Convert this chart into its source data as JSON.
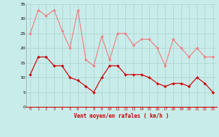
{
  "hours": [
    0,
    1,
    2,
    3,
    4,
    5,
    6,
    7,
    8,
    9,
    10,
    11,
    12,
    13,
    14,
    15,
    16,
    17,
    18,
    19,
    20,
    21,
    22,
    23
  ],
  "rafales": [
    25,
    33,
    31,
    33,
    26,
    20,
    33,
    16,
    14,
    24,
    16,
    25,
    25,
    21,
    23,
    23,
    20,
    14,
    23,
    20,
    17,
    20,
    17,
    17
  ],
  "moyen": [
    11,
    17,
    17,
    14,
    14,
    10,
    9,
    7,
    5,
    10,
    14,
    14,
    11,
    11,
    11,
    10,
    8,
    7,
    8,
    8,
    7,
    10,
    8,
    5
  ],
  "rafales_color": "#f08080",
  "moyen_color": "#cc0000",
  "bg_color": "#c8ecea",
  "grid_color": "#aed4d2",
  "tick_color": "#cc0000",
  "xlabel": "Vent moyen/en rafales ( km/h )",
  "xlabel_color": "#cc0000",
  "ylim": [
    0,
    35
  ],
  "yticks": [
    0,
    5,
    10,
    15,
    20,
    25,
    30,
    35
  ],
  "arrow_color": "#cc0000",
  "arrow_angles": [
    200,
    200,
    200,
    200,
    200,
    200,
    200,
    190,
    165,
    155,
    160,
    155,
    200,
    200,
    200,
    200,
    200,
    260,
    270,
    270,
    270,
    270,
    270,
    270
  ]
}
